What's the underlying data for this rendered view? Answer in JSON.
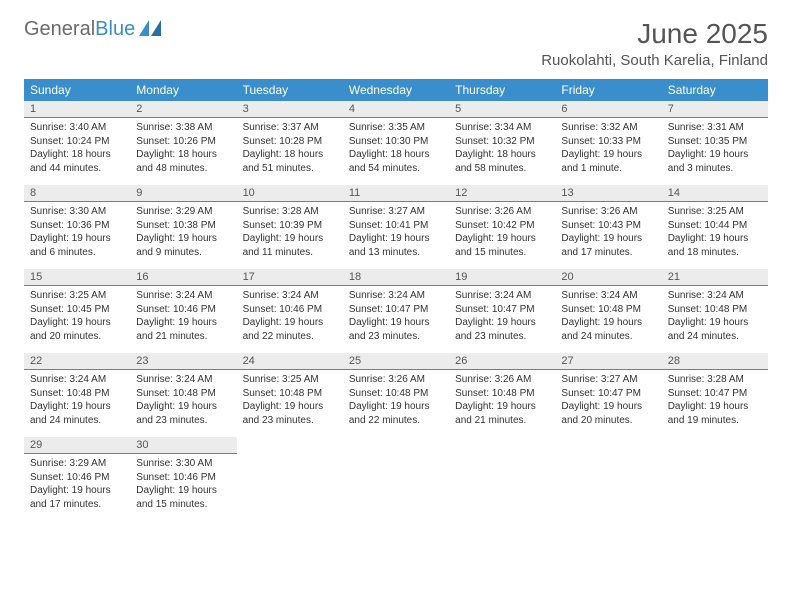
{
  "brand": {
    "part1": "General",
    "part2": "Blue"
  },
  "title": "June 2025",
  "location": "Ruokolahti, South Karelia, Finland",
  "colors": {
    "header_bg": "#3a8ecb",
    "daynum_bg": "#ececec",
    "daynum_border": "#3a8ecb",
    "text": "#333333",
    "title_text": "#555555"
  },
  "weekdays": [
    "Sunday",
    "Monday",
    "Tuesday",
    "Wednesday",
    "Thursday",
    "Friday",
    "Saturday"
  ],
  "weeks": [
    [
      {
        "n": "1",
        "sr": "Sunrise: 3:40 AM",
        "ss": "Sunset: 10:24 PM",
        "dl": "Daylight: 18 hours and 44 minutes."
      },
      {
        "n": "2",
        "sr": "Sunrise: 3:38 AM",
        "ss": "Sunset: 10:26 PM",
        "dl": "Daylight: 18 hours and 48 minutes."
      },
      {
        "n": "3",
        "sr": "Sunrise: 3:37 AM",
        "ss": "Sunset: 10:28 PM",
        "dl": "Daylight: 18 hours and 51 minutes."
      },
      {
        "n": "4",
        "sr": "Sunrise: 3:35 AM",
        "ss": "Sunset: 10:30 PM",
        "dl": "Daylight: 18 hours and 54 minutes."
      },
      {
        "n": "5",
        "sr": "Sunrise: 3:34 AM",
        "ss": "Sunset: 10:32 PM",
        "dl": "Daylight: 18 hours and 58 minutes."
      },
      {
        "n": "6",
        "sr": "Sunrise: 3:32 AM",
        "ss": "Sunset: 10:33 PM",
        "dl": "Daylight: 19 hours and 1 minute."
      },
      {
        "n": "7",
        "sr": "Sunrise: 3:31 AM",
        "ss": "Sunset: 10:35 PM",
        "dl": "Daylight: 19 hours and 3 minutes."
      }
    ],
    [
      {
        "n": "8",
        "sr": "Sunrise: 3:30 AM",
        "ss": "Sunset: 10:36 PM",
        "dl": "Daylight: 19 hours and 6 minutes."
      },
      {
        "n": "9",
        "sr": "Sunrise: 3:29 AM",
        "ss": "Sunset: 10:38 PM",
        "dl": "Daylight: 19 hours and 9 minutes."
      },
      {
        "n": "10",
        "sr": "Sunrise: 3:28 AM",
        "ss": "Sunset: 10:39 PM",
        "dl": "Daylight: 19 hours and 11 minutes."
      },
      {
        "n": "11",
        "sr": "Sunrise: 3:27 AM",
        "ss": "Sunset: 10:41 PM",
        "dl": "Daylight: 19 hours and 13 minutes."
      },
      {
        "n": "12",
        "sr": "Sunrise: 3:26 AM",
        "ss": "Sunset: 10:42 PM",
        "dl": "Daylight: 19 hours and 15 minutes."
      },
      {
        "n": "13",
        "sr": "Sunrise: 3:26 AM",
        "ss": "Sunset: 10:43 PM",
        "dl": "Daylight: 19 hours and 17 minutes."
      },
      {
        "n": "14",
        "sr": "Sunrise: 3:25 AM",
        "ss": "Sunset: 10:44 PM",
        "dl": "Daylight: 19 hours and 18 minutes."
      }
    ],
    [
      {
        "n": "15",
        "sr": "Sunrise: 3:25 AM",
        "ss": "Sunset: 10:45 PM",
        "dl": "Daylight: 19 hours and 20 minutes."
      },
      {
        "n": "16",
        "sr": "Sunrise: 3:24 AM",
        "ss": "Sunset: 10:46 PM",
        "dl": "Daylight: 19 hours and 21 minutes."
      },
      {
        "n": "17",
        "sr": "Sunrise: 3:24 AM",
        "ss": "Sunset: 10:46 PM",
        "dl": "Daylight: 19 hours and 22 minutes."
      },
      {
        "n": "18",
        "sr": "Sunrise: 3:24 AM",
        "ss": "Sunset: 10:47 PM",
        "dl": "Daylight: 19 hours and 23 minutes."
      },
      {
        "n": "19",
        "sr": "Sunrise: 3:24 AM",
        "ss": "Sunset: 10:47 PM",
        "dl": "Daylight: 19 hours and 23 minutes."
      },
      {
        "n": "20",
        "sr": "Sunrise: 3:24 AM",
        "ss": "Sunset: 10:48 PM",
        "dl": "Daylight: 19 hours and 24 minutes."
      },
      {
        "n": "21",
        "sr": "Sunrise: 3:24 AM",
        "ss": "Sunset: 10:48 PM",
        "dl": "Daylight: 19 hours and 24 minutes."
      }
    ],
    [
      {
        "n": "22",
        "sr": "Sunrise: 3:24 AM",
        "ss": "Sunset: 10:48 PM",
        "dl": "Daylight: 19 hours and 24 minutes."
      },
      {
        "n": "23",
        "sr": "Sunrise: 3:24 AM",
        "ss": "Sunset: 10:48 PM",
        "dl": "Daylight: 19 hours and 23 minutes."
      },
      {
        "n": "24",
        "sr": "Sunrise: 3:25 AM",
        "ss": "Sunset: 10:48 PM",
        "dl": "Daylight: 19 hours and 23 minutes."
      },
      {
        "n": "25",
        "sr": "Sunrise: 3:26 AM",
        "ss": "Sunset: 10:48 PM",
        "dl": "Daylight: 19 hours and 22 minutes."
      },
      {
        "n": "26",
        "sr": "Sunrise: 3:26 AM",
        "ss": "Sunset: 10:48 PM",
        "dl": "Daylight: 19 hours and 21 minutes."
      },
      {
        "n": "27",
        "sr": "Sunrise: 3:27 AM",
        "ss": "Sunset: 10:47 PM",
        "dl": "Daylight: 19 hours and 20 minutes."
      },
      {
        "n": "28",
        "sr": "Sunrise: 3:28 AM",
        "ss": "Sunset: 10:47 PM",
        "dl": "Daylight: 19 hours and 19 minutes."
      }
    ],
    [
      {
        "n": "29",
        "sr": "Sunrise: 3:29 AM",
        "ss": "Sunset: 10:46 PM",
        "dl": "Daylight: 19 hours and 17 minutes."
      },
      {
        "n": "30",
        "sr": "Sunrise: 3:30 AM",
        "ss": "Sunset: 10:46 PM",
        "dl": "Daylight: 19 hours and 15 minutes."
      },
      null,
      null,
      null,
      null,
      null
    ]
  ]
}
